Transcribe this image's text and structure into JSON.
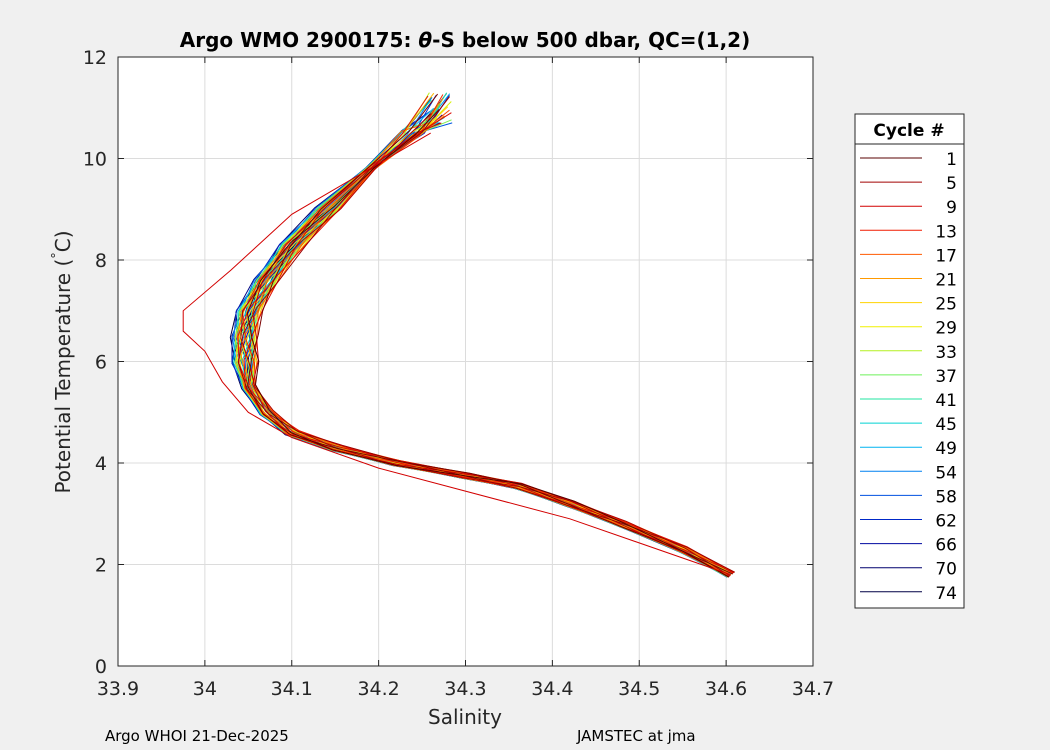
{
  "chart_data": {
    "type": "line",
    "title_parts": [
      "Argo WMO 2900175: ",
      "θ",
      "-S below 500 dbar,  QC=(1,2)"
    ],
    "xlabel": "Salinity",
    "ylabel_parts": [
      "Potential Temperature (",
      "°",
      "C)"
    ],
    "xlim": [
      33.9,
      34.7
    ],
    "ylim": [
      0,
      12
    ],
    "xticks": [
      33.9,
      34.0,
      34.1,
      34.2,
      34.3,
      34.4,
      34.5,
      34.6,
      34.7
    ],
    "xtick_labels": [
      "33.9",
      "34",
      "34.1",
      "34.2",
      "34.3",
      "34.4",
      "34.5",
      "34.6",
      "34.7"
    ],
    "yticks": [
      0,
      2,
      4,
      6,
      8,
      10,
      12
    ],
    "ytick_labels": [
      "0",
      "2",
      "4",
      "6",
      "8",
      "10",
      "12"
    ],
    "grid": true,
    "legend": {
      "title": "Cycle #",
      "placement": "right",
      "entries": [
        {
          "label": "1",
          "color": "#5a0000"
        },
        {
          "label": "5",
          "color": "#a00000"
        },
        {
          "label": "9",
          "color": "#d20000"
        },
        {
          "label": "13",
          "color": "#f01a00"
        },
        {
          "label": "17",
          "color": "#ff5a00"
        },
        {
          "label": "21",
          "color": "#ff9a00"
        },
        {
          "label": "25",
          "color": "#ffd200"
        },
        {
          "label": "29",
          "color": "#f0f000"
        },
        {
          "label": "33",
          "color": "#b4f020"
        },
        {
          "label": "37",
          "color": "#6ef05a"
        },
        {
          "label": "41",
          "color": "#20e6a0"
        },
        {
          "label": "45",
          "color": "#00d2d2"
        },
        {
          "label": "49",
          "color": "#00b4f0"
        },
        {
          "label": "54",
          "color": "#0080f0"
        },
        {
          "label": "58",
          "color": "#0050e0"
        },
        {
          "label": "62",
          "color": "#0028c8"
        },
        {
          "label": "66",
          "color": "#0008a0"
        },
        {
          "label": "70",
          "color": "#00006e"
        },
        {
          "label": "74",
          "color": "#000046"
        }
      ]
    },
    "base_profile": {
      "s": [
        34.605,
        34.55,
        34.48,
        34.42,
        34.36,
        34.3,
        34.22,
        34.15,
        34.1,
        34.07,
        34.05,
        34.045,
        34.045,
        34.05,
        34.07,
        34.1,
        34.14,
        34.19,
        34.24,
        34.27
      ],
      "t": [
        1.8,
        2.3,
        2.8,
        3.2,
        3.55,
        3.75,
        4.0,
        4.3,
        4.6,
        5.0,
        5.5,
        6.0,
        6.5,
        7.0,
        7.6,
        8.3,
        9.0,
        9.8,
        10.5,
        11.0
      ]
    },
    "outlier_profile": {
      "label": "13",
      "s": [
        34.605,
        34.42,
        34.2,
        34.1,
        34.05,
        34.02,
        34.0,
        33.975,
        33.975,
        34.03,
        34.1,
        34.26
      ],
      "t": [
        1.8,
        2.9,
        3.9,
        4.5,
        5.0,
        5.6,
        6.2,
        6.6,
        7.0,
        7.8,
        8.9,
        10.5
      ]
    },
    "footer_left": "Argo WHOI 21-Dec-2025",
    "footer_right": "JAMSTEC at jma"
  }
}
